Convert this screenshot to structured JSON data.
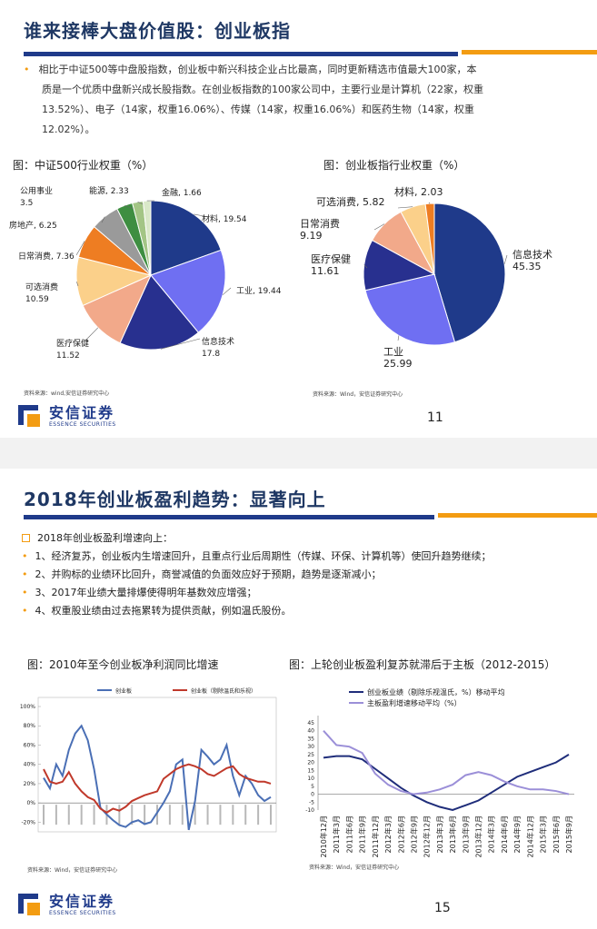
{
  "slide1": {
    "title": "谁来接棒大盘价值股：创业板指",
    "para_line1": "相比于中证500等中盘股指数，创业板中新兴科技企业占比最高，同时更新精选市值最大100家，本",
    "para_line2": "质是一个优质中盘新兴成长股指数。在创业板指数的100家公司中，主要行业是计算机（22家，权重",
    "para_line3": "13.52%）、电子（14家，权重16.06%）、传媒（14家，权重16.06%）和医药生物（14家，权重",
    "para_line4": "12.02%）。",
    "caption_left": "图：中证500行业权重（%）",
    "caption_right": "图：创业板指行业权重（%）",
    "source_left": "资料来源：wind,安信证券研究中心",
    "source_right": "资料来源：Wind，安信证券研究中心",
    "page_number": "11",
    "logo_cn": "安信证券",
    "logo_en": "ESSENCE SECURITIES"
  },
  "slide2": {
    "title": "2018年创业板盈利趋势：显著向上",
    "heading": "2018年创业板盈利增速向上：",
    "bullets": [
      "1、经济复苏，创业板内生增速回升，且重点行业后周期性（传媒、环保、计算机等）使回升趋势继续；",
      "2、并购标的业绩环比回升，商誉减值的负面效应好于预期，趋势是逐渐减小；",
      "3、2017年业绩大量排爆使得明年基数效应增强；",
      "4、权重股业绩由过去拖累转为提供贡献，例如温氏股份。"
    ],
    "caption_left": "图：2010年至今创业板净利润同比增速",
    "caption_right": "图：上轮创业板盈利复苏就滞后于主板（2012-2015）",
    "source_left": "资料来源：Wind，安信证券研究中心",
    "source_right": "资料来源：Wind，安信证券研究中心",
    "page_number": "15",
    "logo_cn": "安信证券",
    "logo_en": "ESSENCE SECURITIES"
  },
  "chart_data": [
    {
      "type": "pie",
      "title": "图：中证500行业权重（%）",
      "slices": [
        {
          "label": "材料",
          "value": 19.54,
          "color": "#1f3a8a"
        },
        {
          "label": "工业",
          "value": 19.44,
          "color": "#6f6ff2"
        },
        {
          "label": "信息技术",
          "value": 17.8,
          "color": "#28308f"
        },
        {
          "label": "医疗保健",
          "value": 11.52,
          "color": "#f2a98a"
        },
        {
          "label": "可选消费",
          "value": 10.59,
          "color": "#fbd08a"
        },
        {
          "label": "日常消费",
          "value": 7.36,
          "color": "#ee7d22"
        },
        {
          "label": "房地产",
          "value": 6.25,
          "color": "#9a9a9a"
        },
        {
          "label": "公用事业",
          "value": 3.5,
          "color": "#3e8e41"
        },
        {
          "label": "能源",
          "value": 2.33,
          "color": "#a3c585"
        },
        {
          "label": "金融",
          "value": 1.66,
          "color": "#d9e8c8"
        }
      ]
    },
    {
      "type": "pie",
      "title": "图：创业板指行业权重（%）",
      "slices": [
        {
          "label": "信息技术",
          "value": 45.35,
          "color": "#1f3a8a"
        },
        {
          "label": "工业",
          "value": 25.99,
          "color": "#6f6ff2"
        },
        {
          "label": "医疗保健",
          "value": 11.61,
          "color": "#28308f"
        },
        {
          "label": "日常消费",
          "value": 9.19,
          "color": "#f2a98a"
        },
        {
          "label": "可选消费",
          "value": 5.82,
          "color": "#fbd08a"
        },
        {
          "label": "材料",
          "value": 2.03,
          "color": "#ee7d22"
        }
      ]
    },
    {
      "type": "line",
      "title": "图：2010年至今创业板净利润同比增速",
      "ylim": [
        -30,
        100
      ],
      "yticks": [
        "100%",
        "80%",
        "60%",
        "40%",
        "20%",
        "0%",
        "-20%"
      ],
      "series": [
        {
          "name": "创业板",
          "color": "#4a6fb5",
          "values": [
            26,
            15,
            40,
            28,
            55,
            72,
            80,
            65,
            35,
            -5,
            -12,
            -18,
            -23,
            -25,
            -20,
            -18,
            -22,
            -20,
            -10,
            0,
            12,
            40,
            45,
            -28,
            2,
            55,
            48,
            40,
            45,
            60,
            28,
            8,
            28,
            20,
            8,
            2,
            6
          ]
        },
        {
          "name": "创业板（剔除温氏和乐视）",
          "color": "#c0392b",
          "values": [
            35,
            22,
            20,
            22,
            32,
            20,
            12,
            6,
            3,
            -6,
            -10,
            -6,
            -8,
            -4,
            2,
            5,
            8,
            10,
            12,
            25,
            30,
            35,
            38,
            40,
            38,
            35,
            30,
            28,
            32,
            36,
            38,
            30,
            26,
            24,
            22,
            22,
            20
          ]
        }
      ]
    },
    {
      "type": "line",
      "title": "图：上轮创业板盈利复苏就滞后于主板（2012-2015）",
      "ylim": [
        -10,
        45
      ],
      "yticks": [
        "45",
        "40",
        "35",
        "30",
        "25",
        "20",
        "15",
        "10",
        "5",
        "0",
        "-5",
        "-10"
      ],
      "categories": [
        "2010年12月",
        "2011年3月",
        "2011年6月",
        "2011年9月",
        "2011年12月",
        "2012年3月",
        "2012年6月",
        "2012年9月",
        "2012年12月",
        "2013年3月",
        "2013年6月",
        "2013年9月",
        "2013年12月",
        "2014年3月",
        "2014年6月",
        "2014年9月",
        "2014年12月",
        "2015年3月",
        "2015年6月",
        "2015年9月"
      ],
      "series": [
        {
          "name": "创业板业绩（剔除乐视温氏，%）移动平均",
          "color": "#1f2d7a",
          "values": [
            23,
            24,
            24,
            22,
            16,
            10,
            4,
            -1,
            -5,
            -8,
            -10,
            -7,
            -4,
            1,
            6,
            11,
            14,
            17,
            20,
            25
          ]
        },
        {
          "name": "主板盈利增速移动平均（%）",
          "color": "#9b8fd8",
          "values": [
            40,
            31,
            30,
            26,
            13,
            6,
            2,
            0,
            1,
            3,
            6,
            12,
            14,
            12,
            8,
            5,
            3,
            3,
            2,
            0
          ]
        }
      ]
    }
  ]
}
